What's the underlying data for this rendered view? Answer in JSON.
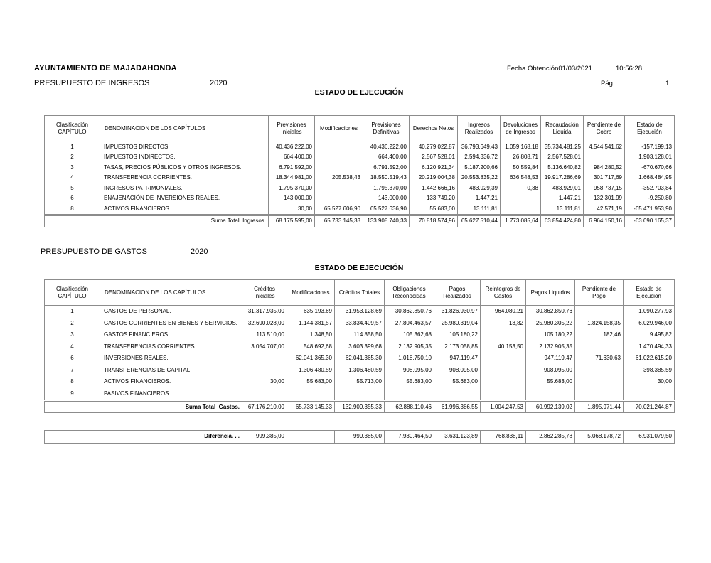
{
  "header": {
    "organization": "AYUNTAMIENTO DE MAJADAHONDA",
    "fecha_obtencion_label": "Fecha Obtención",
    "fecha_obtencion_value": "01/03/2021",
    "hora_value": "10:56:28",
    "page_label": "Pág.",
    "page_number": "1"
  },
  "ingresos": {
    "title": "PRESUPUESTO DE INGRESOS",
    "year": "2020",
    "estado_title": "ESTADO DE EJECUCIÓN",
    "headers": [
      "Clasificación CAPÍTULO",
      "DENOMINACION DE LOS CAPÍTULOS",
      "Previsiones Iniciales",
      "Modificaciones",
      "Previsiones Definitivas",
      "Derechos Netos",
      "Ingresos Realizados",
      "Devoluciones de Ingresos",
      "Recaudación Liquida",
      "Pendiente de Cobro",
      "Estado de Ejecución"
    ],
    "rows": [
      [
        "1",
        "IMPUESTOS DIRECTOS.",
        "40.436.222,00",
        "",
        "40.436.222,00",
        "40.279.022,87",
        "36.793.649,43",
        "1.059.168,18",
        "35.734.481,25",
        "4.544.541,62",
        "-157.199,13"
      ],
      [
        "2",
        "IMPUESTOS INDIRECTOS.",
        "664.400,00",
        "",
        "664.400,00",
        "2.567.528,01",
        "2.594.336,72",
        "26.808,71",
        "2.567.528,01",
        "",
        "1.903.128,01"
      ],
      [
        "3",
        "TASAS, PRECIOS PÚBLICOS Y OTROS INGRESOS.",
        "6.791.592,00",
        "",
        "6.791.592,00",
        "6.120.921,34",
        "5.187.200,66",
        "50.559,84",
        "5.136.640,82",
        "984.280,52",
        "-670.670,66"
      ],
      [
        "4",
        "TRANSFERENCIA CORRIENTES.",
        "18.344.981,00",
        "205.538,43",
        "18.550.519,43",
        "20.219.004,38",
        "20.553.835,22",
        "636.548,53",
        "19.917.286,69",
        "301.717,69",
        "1.668.484,95"
      ],
      [
        "5",
        "INGRESOS PATRIMONIALES.",
        "1.795.370,00",
        "",
        "1.795.370,00",
        "1.442.666,16",
        "483.929,39",
        "0,38",
        "483.929,01",
        "958.737,15",
        "-352.703,84"
      ],
      [
        "6",
        "ENAJENACIÓN DE INVERSIONES REALES.",
        "143.000,00",
        "",
        "143.000,00",
        "133.749,20",
        "1.447,21",
        "",
        "1.447,21",
        "132.301,99",
        "-9.250,80"
      ],
      [
        "8",
        "ACTIVOS FINANCIEROS.",
        "30,00",
        "65.527.606,90",
        "65.527.636,90",
        "55.683,00",
        "13.111,81",
        "",
        "13.111,81",
        "42.571,19",
        "-65.471.953,90"
      ]
    ],
    "total": {
      "label": "Suma Total  Ingresos.",
      "cells": [
        "68.175.595,00",
        "65.733.145,33",
        "133.908.740,33",
        "70.818.574,96",
        "65.627.510,44",
        "1.773.085,64",
        "63.854.424,80",
        "6.964.150,16",
        "-63.090.165,37"
      ]
    }
  },
  "gastos": {
    "title": "PRESUPUESTO DE GASTOS",
    "year": "2020",
    "estado_title": "ESTADO DE EJECUCIÓN",
    "headers": [
      "Clasificación CAPÍTULO",
      "DENOMINACION DE LOS CAPÍTULOS",
      "Créditos Iniciales",
      "Modificaciones",
      "Créditos Totales",
      "Obligaciones Reconocidas",
      "Pagos Realizados",
      "Reintegros de Gastos",
      "Pagos Liquidos",
      "Pendiente de Pago",
      "Estado de Ejecución"
    ],
    "rows": [
      [
        "1",
        "GASTOS DE PERSONAL.",
        "31.317.935,00",
        "635.193,69",
        "31.953.128,69",
        "30.862.850,76",
        "31.826.930,97",
        "964.080,21",
        "30.862.850,76",
        "",
        "1.090.277,93"
      ],
      [
        "2",
        "GASTOS CORRIENTES EN BIENES Y SERVICIOS.",
        "32.690.028,00",
        "1.144.381,57",
        "33.834.409,57",
        "27.804.463,57",
        "25.980.319,04",
        "13,82",
        "25.980.305,22",
        "1.824.158,35",
        "6.029.946,00"
      ],
      [
        "3",
        "GASTOS FINANCIEROS.",
        "113.510,00",
        "1.348,50",
        "114.858,50",
        "105.362,68",
        "105.180,22",
        "",
        "105.180,22",
        "182,46",
        "9.495,82"
      ],
      [
        "4",
        "TRANSFERENCIAS CORRIENTES.",
        "3.054.707,00",
        "548.692,68",
        "3.603.399,68",
        "2.132.905,35",
        "2.173.058,85",
        "40.153,50",
        "2.132.905,35",
        "",
        "1.470.494,33"
      ],
      [
        "6",
        "INVERSIONES REALES.",
        "",
        "62.041.365,30",
        "62.041.365,30",
        "1.018.750,10",
        "947.119,47",
        "",
        "947.119,47",
        "71.630,63",
        "61.022.615,20"
      ],
      [
        "7",
        "TRANSFERENCIAS DE CAPITAL.",
        "",
        "1.306.480,59",
        "1.306.480,59",
        "908.095,00",
        "908.095,00",
        "",
        "908.095,00",
        "",
        "398.385,59"
      ],
      [
        "8",
        "ACTIVOS FINANCIEROS.",
        "30,00",
        "55.683,00",
        "55.713,00",
        "55.683,00",
        "55.683,00",
        "",
        "55.683,00",
        "",
        "30,00"
      ],
      [
        "9",
        "PASIVOS FINANCIEROS.",
        "",
        "",
        "",
        "",
        "",
        "",
        "",
        "",
        ""
      ]
    ],
    "total": {
      "label": "Suma Total  Gastos.",
      "cells": [
        "67.176.210,00",
        "65.733.145,33",
        "132.909.355,33",
        "62.888.110,46",
        "61.996.386,55",
        "1.004.247,53",
        "60.992.139,02",
        "1.895.971,44",
        "70.021.244,87"
      ]
    }
  },
  "diferencia": {
    "label": "Diferencia. . .",
    "cells": [
      "999.385,00",
      "",
      "999.385,00",
      "7.930.464,50",
      "3.631.123,89",
      "768.838,11",
      "2.862.285,78",
      "5.068.178,72",
      "6.931.079,50"
    ]
  }
}
